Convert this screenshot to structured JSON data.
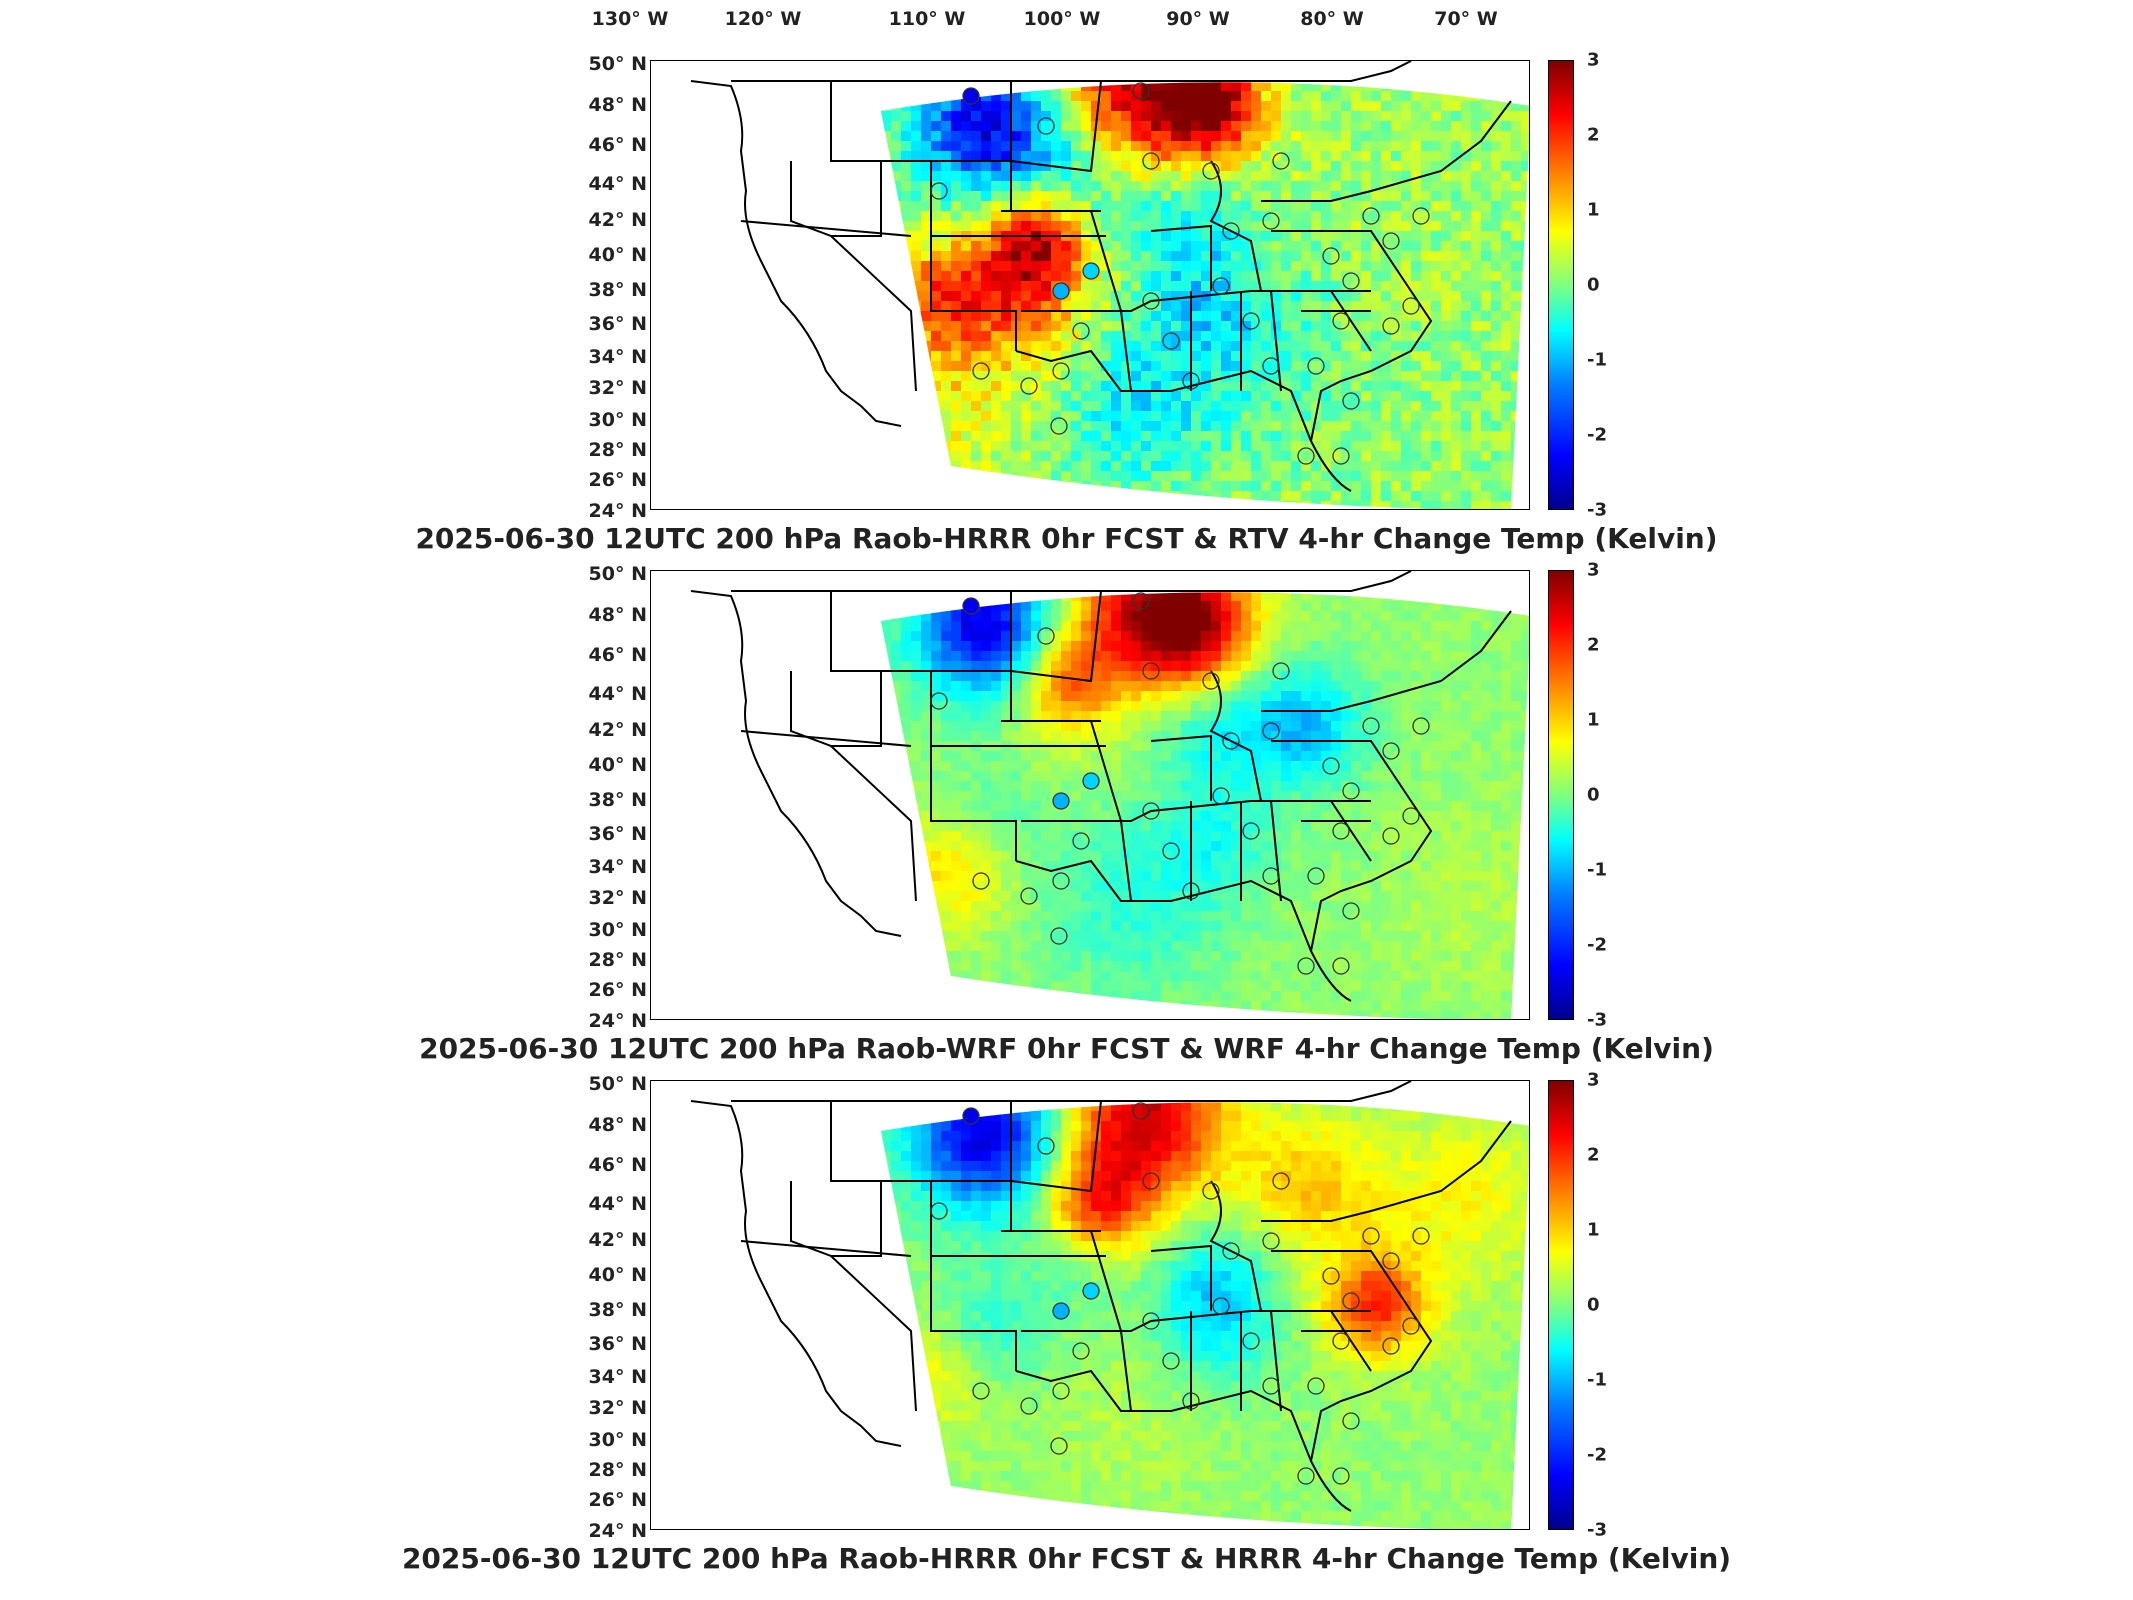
{
  "lon_labels": [
    "130° W",
    "120° W",
    "110° W",
    "100° W",
    "90° W",
    "80° W",
    "70° W"
  ],
  "lat_labels": [
    "50° N",
    "48° N",
    "46° N",
    "44° N",
    "42° N",
    "40° N",
    "38° N",
    "36° N",
    "34° N",
    "32° N",
    "30° N",
    "28° N",
    "26° N",
    "24° N"
  ],
  "colorbar_ticks": [
    "3",
    "2",
    "1",
    "0",
    "-1",
    "-2",
    "-3"
  ],
  "panels": [
    {
      "title": "2025-06-30 12UTC 200 hPa Raob-HRRR 0hr FCST & RTV 4-hr Change Temp (Kelvin)"
    },
    {
      "title": "2025-06-30 12UTC 200 hPa Raob-WRF 0hr FCST & WRF 4-hr Change Temp (Kelvin)"
    },
    {
      "title": "2025-06-30 12UTC 200 hPa Raob-HRRR 0hr FCST & HRRR 4-hr Change Temp (Kelvin)"
    }
  ],
  "colormap": {
    "min": -3,
    "max": 3,
    "colors": [
      "#00008f",
      "#0000ff",
      "#0080ff",
      "#00ffff",
      "#80ff80",
      "#ffff00",
      "#ff8000",
      "#ff0000",
      "#800000"
    ]
  }
}
